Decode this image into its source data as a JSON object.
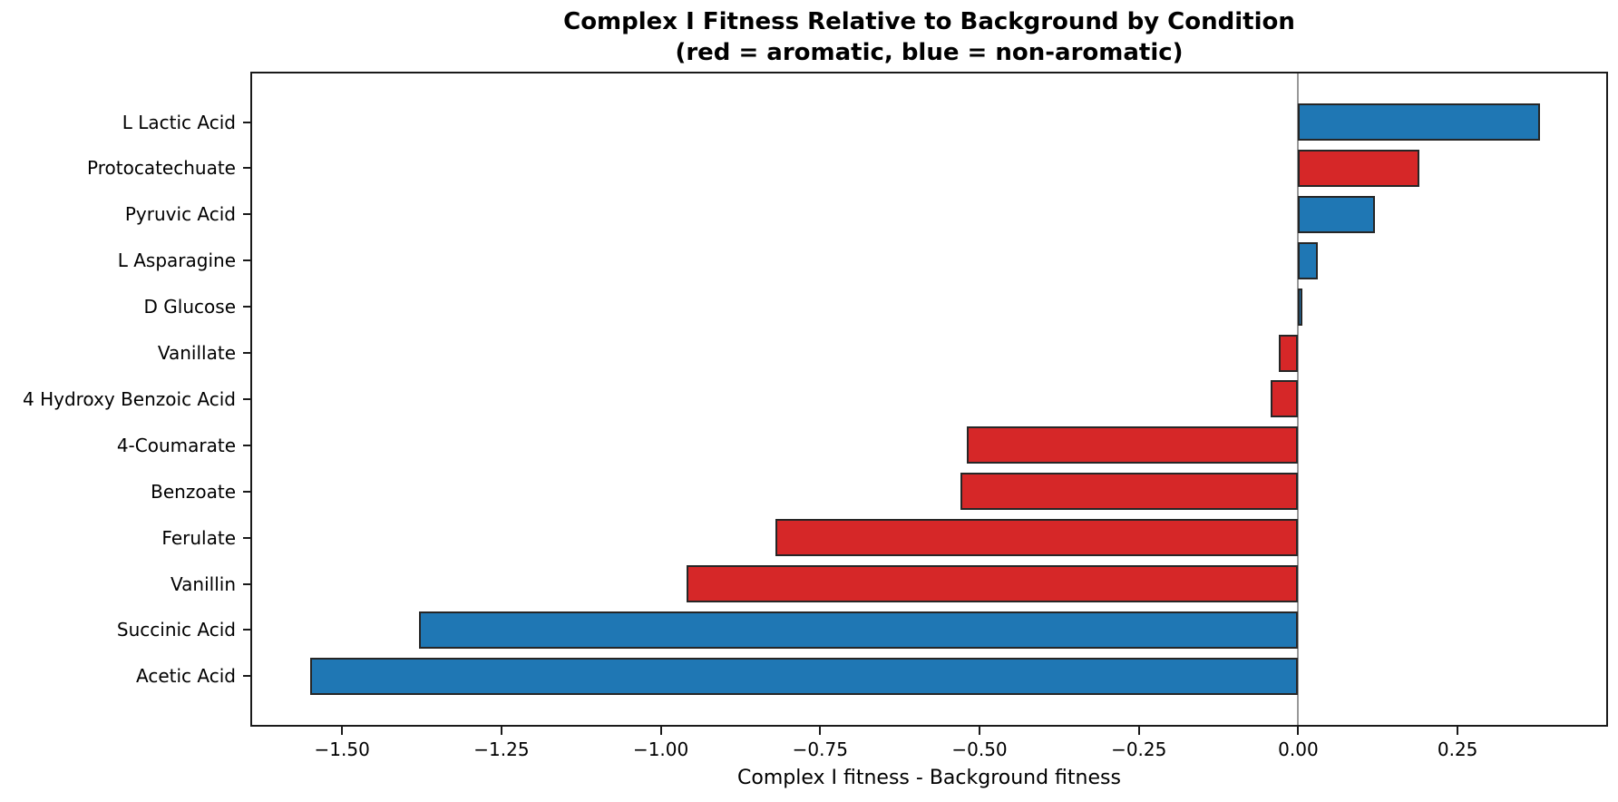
{
  "title": {
    "line1": "Complex I Fitness Relative to Background by Condition",
    "line2": "(red = aromatic, blue = non-aromatic)"
  },
  "chart_data": {
    "type": "bar",
    "orientation": "horizontal",
    "title": "Complex I Fitness Relative to Background by Condition (red = aromatic, blue = non-aromatic)",
    "xlabel": "Complex I fitness - Background fitness",
    "ylabel": "",
    "categories": [
      "L Lactic Acid",
      "Protocatechuate",
      "Pyruvic Acid",
      "L Asparagine",
      "D Glucose",
      "Vanillate",
      "4 Hydroxy Benzoic Acid",
      "4-Coumarate",
      "Benzoate",
      "Ferulate",
      "Vanillin",
      "Succinic Acid",
      "Acetic Acid"
    ],
    "values": [
      0.38,
      0.19,
      0.12,
      0.03,
      0.006,
      -0.03,
      -0.044,
      -0.52,
      -0.53,
      -0.82,
      -0.96,
      -1.38,
      -1.55
    ],
    "groups": [
      "non-aromatic",
      "aromatic",
      "non-aromatic",
      "non-aromatic",
      "non-aromatic",
      "aromatic",
      "aromatic",
      "aromatic",
      "aromatic",
      "aromatic",
      "aromatic",
      "non-aromatic",
      "non-aromatic"
    ],
    "group_colors": {
      "aromatic": "#d62728",
      "non-aromatic": "#1f77b4"
    },
    "bar_edge_color": "#262626",
    "zero_line_color": "#999999",
    "xlim": [
      -1.644,
      0.486
    ],
    "x_ticks": [
      -1.5,
      -1.25,
      -1.0,
      -0.75,
      -0.5,
      -0.25,
      0.0,
      0.25
    ],
    "x_tick_labels": [
      "−1.50",
      "−1.25",
      "−1.00",
      "−0.75",
      "−0.50",
      "−0.25",
      "0.00",
      "0.25"
    ],
    "grid": false,
    "legend": "none"
  }
}
